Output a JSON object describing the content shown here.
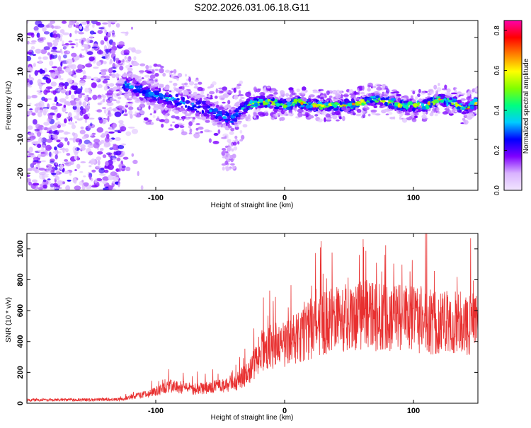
{
  "title": "S202.2026.031.06.18.G11",
  "chart_data": [
    {
      "type": "heatmap",
      "xlabel": "Height of straight line (km)",
      "ylabel": "Frequency (Hz)",
      "xlim": [
        -200,
        150
      ],
      "ylim": [
        -25,
        25
      ],
      "xticks": [
        -100,
        0,
        100
      ],
      "xtick_labels": [
        "-100",
        "0",
        "100"
      ],
      "yticks": [
        20,
        10,
        0,
        -10,
        -20
      ],
      "ytick_labels": [
        "20",
        "10",
        "0",
        "-10",
        "-20"
      ],
      "ridge": [
        {
          "x": -120,
          "y": 6
        },
        {
          "x": -110,
          "y": 4
        },
        {
          "x": -100,
          "y": 3
        },
        {
          "x": -90,
          "y": 2
        },
        {
          "x": -80,
          "y": 1
        },
        {
          "x": -70,
          "y": 0
        },
        {
          "x": -60,
          "y": -1
        },
        {
          "x": -50,
          "y": -3
        },
        {
          "x": -40,
          "y": -4
        },
        {
          "x": -30,
          "y": 0
        },
        {
          "x": -20,
          "y": 1
        },
        {
          "x": -10,
          "y": 1
        },
        {
          "x": 0,
          "y": 0
        },
        {
          "x": 10,
          "y": 1
        },
        {
          "x": 20,
          "y": 0
        },
        {
          "x": 30,
          "y": 0
        },
        {
          "x": 40,
          "y": 0
        },
        {
          "x": 50,
          "y": 0
        },
        {
          "x": 60,
          "y": 1
        },
        {
          "x": 70,
          "y": 2
        },
        {
          "x": 80,
          "y": 1
        },
        {
          "x": 90,
          "y": 0
        },
        {
          "x": 100,
          "y": 0
        },
        {
          "x": 110,
          "y": 0
        },
        {
          "x": 120,
          "y": 2
        },
        {
          "x": 130,
          "y": 1
        },
        {
          "x": 140,
          "y": -1
        },
        {
          "x": 150,
          "y": 1
        }
      ],
      "colorbar": {
        "label": "Normalized spectral amplitude",
        "range": [
          0,
          0.85
        ],
        "ticks": [
          0.0,
          0.2,
          0.4,
          0.6,
          0.8
        ],
        "tick_labels": [
          "0.0",
          "0.2",
          "0.4",
          "0.6",
          "0.8"
        ],
        "colors": [
          "#f2e6ff",
          "#d9b3ff",
          "#7f00ff",
          "#0000ff",
          "#00ccff",
          "#00ff80",
          "#80ff00",
          "#ffff00",
          "#ff8000",
          "#ff0000",
          "#ff00aa"
        ]
      }
    },
    {
      "type": "line",
      "xlabel": "Height of straight line (km)",
      "ylabel": "SNR (10 * v/v)",
      "xlim": [
        -200,
        150
      ],
      "ylim": [
        0,
        1100
      ],
      "xticks": [
        -100,
        0,
        100
      ],
      "xtick_labels": [
        "-100",
        "0",
        "100"
      ],
      "yticks": [
        0,
        200,
        400,
        600,
        800,
        1000
      ],
      "ytick_labels": [
        "0",
        "200",
        "400",
        "600",
        "800",
        "1000"
      ],
      "color": "#e83030",
      "envelope": [
        {
          "x": -200,
          "y": 20
        },
        {
          "x": -150,
          "y": 22
        },
        {
          "x": -130,
          "y": 25
        },
        {
          "x": -120,
          "y": 40
        },
        {
          "x": -100,
          "y": 80
        },
        {
          "x": -90,
          "y": 120
        },
        {
          "x": -80,
          "y": 110
        },
        {
          "x": -70,
          "y": 100
        },
        {
          "x": -60,
          "y": 110
        },
        {
          "x": -50,
          "y": 120
        },
        {
          "x": -40,
          "y": 130
        },
        {
          "x": -30,
          "y": 200
        },
        {
          "x": -25,
          "y": 250
        },
        {
          "x": -20,
          "y": 350
        },
        {
          "x": -10,
          "y": 400
        },
        {
          "x": 0,
          "y": 420
        },
        {
          "x": 10,
          "y": 450
        },
        {
          "x": 20,
          "y": 520
        },
        {
          "x": 40,
          "y": 600
        },
        {
          "x": 60,
          "y": 620
        },
        {
          "x": 80,
          "y": 600
        },
        {
          "x": 100,
          "y": 580
        },
        {
          "x": 120,
          "y": 570
        },
        {
          "x": 140,
          "y": 560
        },
        {
          "x": 150,
          "y": 550
        }
      ]
    }
  ]
}
